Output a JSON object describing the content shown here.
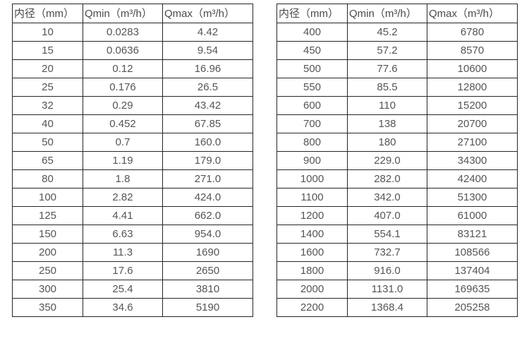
{
  "columns": [
    "内径（mm）",
    "Qmin（m³/h）",
    "Qmax（m³/h）"
  ],
  "left_table": {
    "rows": [
      [
        "10",
        "0.0283",
        "4.42"
      ],
      [
        "15",
        "0.0636",
        "9.54"
      ],
      [
        "20",
        "0.12",
        "16.96"
      ],
      [
        "25",
        "0.176",
        "26.5"
      ],
      [
        "32",
        "0.29",
        "43.42"
      ],
      [
        "40",
        "0.452",
        "67.85"
      ],
      [
        "50",
        "0.7",
        "160.0"
      ],
      [
        "65",
        "1.19",
        "179.0"
      ],
      [
        "80",
        "1.8",
        "271.0"
      ],
      [
        "100",
        "2.82",
        "424.0"
      ],
      [
        "125",
        "4.41",
        "662.0"
      ],
      [
        "150",
        "6.63",
        "954.0"
      ],
      [
        "200",
        "11.3",
        "1690"
      ],
      [
        "250",
        "17.6",
        "2650"
      ],
      [
        "300",
        "25.4",
        "3810"
      ],
      [
        "350",
        "34.6",
        "5190"
      ]
    ]
  },
  "right_table": {
    "rows": [
      [
        "400",
        "45.2",
        "6780"
      ],
      [
        "450",
        "57.2",
        "8570"
      ],
      [
        "500",
        "77.6",
        "10600"
      ],
      [
        "550",
        "85.5",
        "12800"
      ],
      [
        "600",
        "110",
        "15200"
      ],
      [
        "700",
        "138",
        "20700"
      ],
      [
        "800",
        "180",
        "27100"
      ],
      [
        "900",
        "229.0",
        "34300"
      ],
      [
        "1000",
        "282.0",
        "42400"
      ],
      [
        "1100",
        "342.0",
        "51300"
      ],
      [
        "1200",
        "407.0",
        "61000"
      ],
      [
        "1400",
        "554.1",
        "83121"
      ],
      [
        "1600",
        "732.7",
        "108566"
      ],
      [
        "1800",
        "916.0",
        "137404"
      ],
      [
        "2000",
        "1131.0",
        "169635"
      ],
      [
        "2200",
        "1368.4",
        "205258"
      ]
    ]
  },
  "colors": {
    "border": "#262626",
    "text": "#555555",
    "background": "#ffffff"
  }
}
